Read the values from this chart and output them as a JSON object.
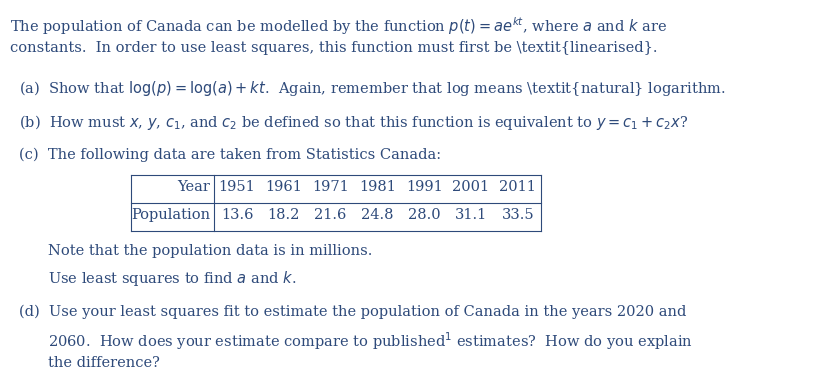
{
  "bg_color": "#ffffff",
  "text_color": "#2e4a7a",
  "fig_width": 8.14,
  "fig_height": 3.7,
  "dpi": 100,
  "intro_line1": "The population of Canada can be modelled by the function $p(t) = ae^{kt}$, where $a$ and $k$ are",
  "intro_line2": "constants.  In order to use least squares, this function must first be \\textit{linearised}.",
  "part_a": "(a)  Show that $\\log(p) = \\log(a) + kt$.  Again, remember that log means \\textit{natural} logarithm.",
  "part_b": "(b)  How must $x$, $y$, $c_1$, and $c_2$ be defined so that this function is equivalent to $y = c_1 + c_2 x$?",
  "part_c": "(c)  The following data are taken from Statistics Canada:",
  "table_years": [
    "Year",
    "1951",
    "1961",
    "1971",
    "1981",
    "1991",
    "2001",
    "2011"
  ],
  "table_pop": [
    "Population",
    "13.6",
    "18.2",
    "21.6",
    "24.8",
    "28.0",
    "31.1",
    "33.5"
  ],
  "note1": "Note that the population data is in millions.",
  "note2": "Use least squares to find $a$ and $k$.",
  "part_d_line1": "(d)  Use your least squares fit to estimate the population of Canada in the years 2020 and",
  "part_d_line2": "2060.  How does your estimate compare to published$^1$ estimates?  How do you explain",
  "part_d_line3": "the difference?"
}
